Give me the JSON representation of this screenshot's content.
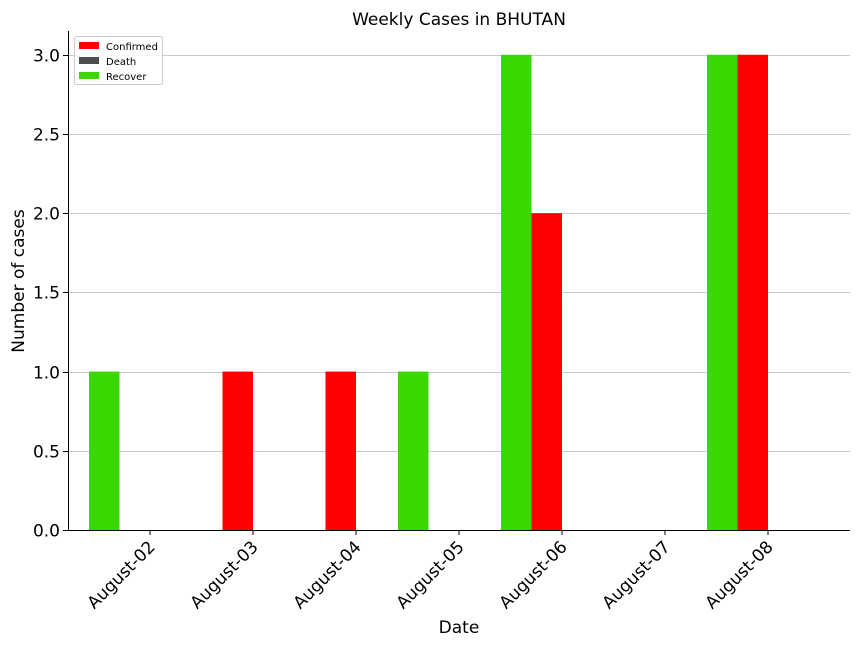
{
  "chart_data": {
    "type": "bar",
    "title": "Weekly Cases in BHUTAN",
    "xlabel": "Date",
    "ylabel": "Number of cases",
    "categories": [
      "August-02",
      "August-03",
      "August-04",
      "August-05",
      "August-06",
      "August-07",
      "August-08"
    ],
    "series": [
      {
        "name": "Recover",
        "color": "#3ad703",
        "values": [
          1,
          0,
          0,
          1,
          3,
          0,
          3
        ]
      },
      {
        "name": "Confirmed",
        "color": "#ff0000",
        "values": [
          0,
          1,
          1,
          0,
          2,
          0,
          3
        ]
      },
      {
        "name": "Death",
        "color": "#4d4d4d",
        "values": [
          0,
          0,
          0,
          0,
          0,
          0,
          0
        ]
      }
    ],
    "legend_order": [
      "Confirmed",
      "Death",
      "Recover"
    ],
    "ylim": [
      0,
      3.15
    ],
    "yticks": [
      0.0,
      0.5,
      1.0,
      1.5,
      2.0,
      2.5,
      3.0
    ],
    "ytick_labels": [
      "0.0",
      "0.5",
      "1.0",
      "1.5",
      "2.0",
      "2.5",
      "3.0"
    ],
    "grid": "horizontal",
    "legend_position": "top-left"
  }
}
